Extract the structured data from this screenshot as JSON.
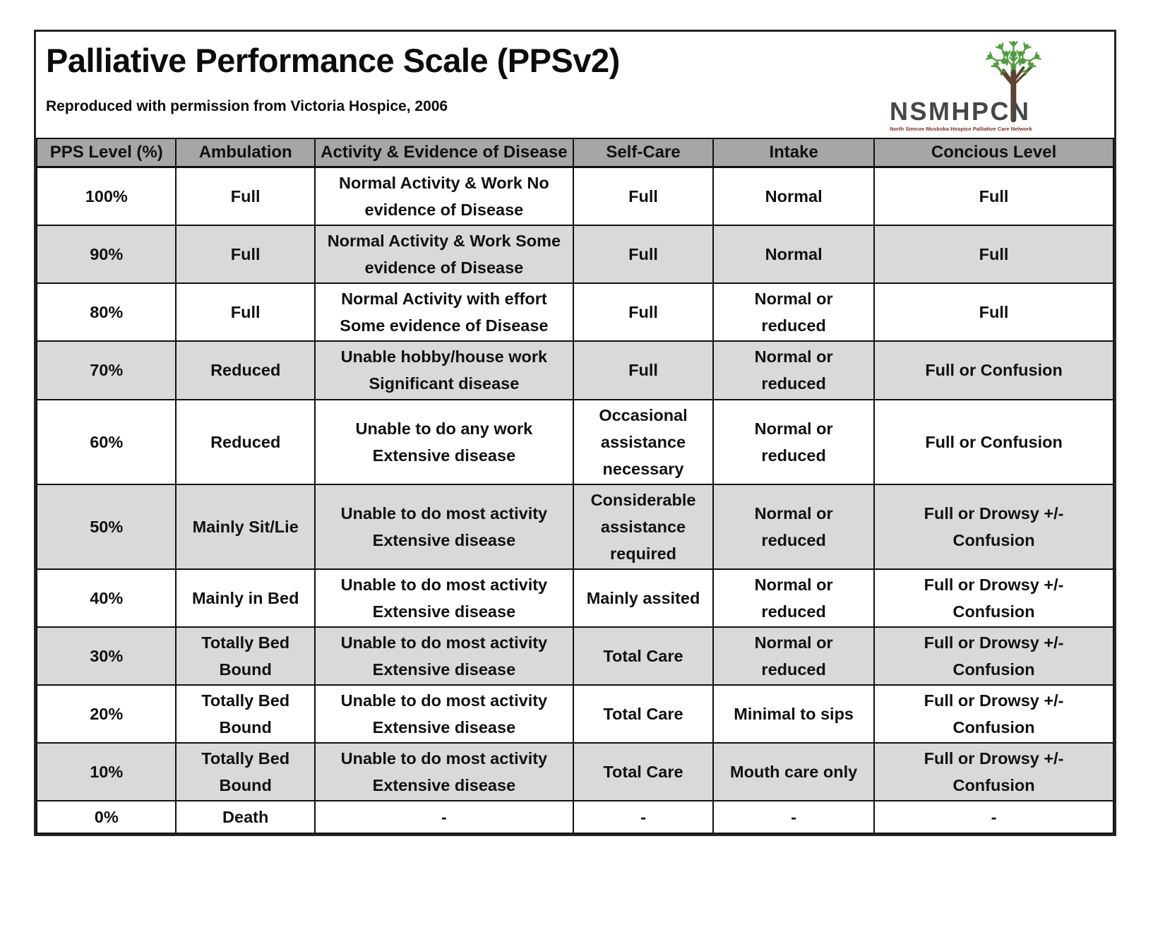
{
  "page": {
    "title": "Palliative Performance Scale (PPSv2)",
    "attribution": "Reproduced with permission from Victoria Hospice, 2006"
  },
  "logo": {
    "acronym": "NSMHPCN",
    "tagline": "North Simcoe Muskoka Hospice Palliative Care Network",
    "icon": "tree-of-people-icon",
    "colors": {
      "foliage": "#4f9c3d",
      "trunk": "#5b432f",
      "acronym": "#474747",
      "tagline": "#7c3128"
    }
  },
  "table": {
    "columns": [
      "PPS Level (%)",
      "Ambulation",
      "Activity & Evidence of Disease",
      "Self-Care",
      "Intake",
      "Concious Level"
    ],
    "rows": [
      [
        "100%",
        "Full",
        "Normal Activity & Work No\nevidence of Disease",
        "Full",
        "Normal",
        "Full"
      ],
      [
        "90%",
        "Full",
        "Normal Activity & Work Some\nevidence of Disease",
        "Full",
        "Normal",
        "Full"
      ],
      [
        "80%",
        "Full",
        "Normal Activity with effort\nSome evidence of Disease",
        "Full",
        "Normal or\nreduced",
        "Full"
      ],
      [
        "70%",
        "Reduced",
        "Unable hobby/house work\nSignificant disease",
        "Full",
        "Normal or\nreduced",
        "Full or Confusion"
      ],
      [
        "60%",
        "Reduced",
        "Unable to do any work\nExtensive disease",
        "Occasional\nassistance\nnecessary",
        "Normal or\nreduced",
        "Full or Confusion"
      ],
      [
        "50%",
        "Mainly Sit/Lie",
        "Unable to do most activity\nExtensive disease",
        "Considerable\nassistance\nrequired",
        "Normal or\nreduced",
        "Full or Drowsy +/-\nConfusion"
      ],
      [
        "40%",
        "Mainly in Bed",
        "Unable to do most activity\nExtensive disease",
        "Mainly assited",
        "Normal or\nreduced",
        "Full or Drowsy +/-\nConfusion"
      ],
      [
        "30%",
        "Totally Bed\nBound",
        "Unable to do most activity\nExtensive disease",
        "Total Care",
        "Normal or\nreduced",
        "Full or Drowsy +/-\nConfusion"
      ],
      [
        "20%",
        "Totally Bed\nBound",
        "Unable to do most activity\nExtensive disease",
        "Total Care",
        "Minimal to sips",
        "Full or Drowsy +/-\nConfusion"
      ],
      [
        "10%",
        "Totally Bed\nBound",
        "Unable to do most activity\nExtensive disease",
        "Total Care",
        "Mouth care only",
        "Full or Drowsy +/-\nConfusion"
      ],
      [
        "0%",
        "Death",
        "-",
        "-",
        "-",
        "-"
      ]
    ],
    "colors": {
      "header_bg": "#a6a6a6",
      "alt_row_bg": "#d9d9d9",
      "row_bg": "#ffffff",
      "border": "#111111"
    }
  }
}
